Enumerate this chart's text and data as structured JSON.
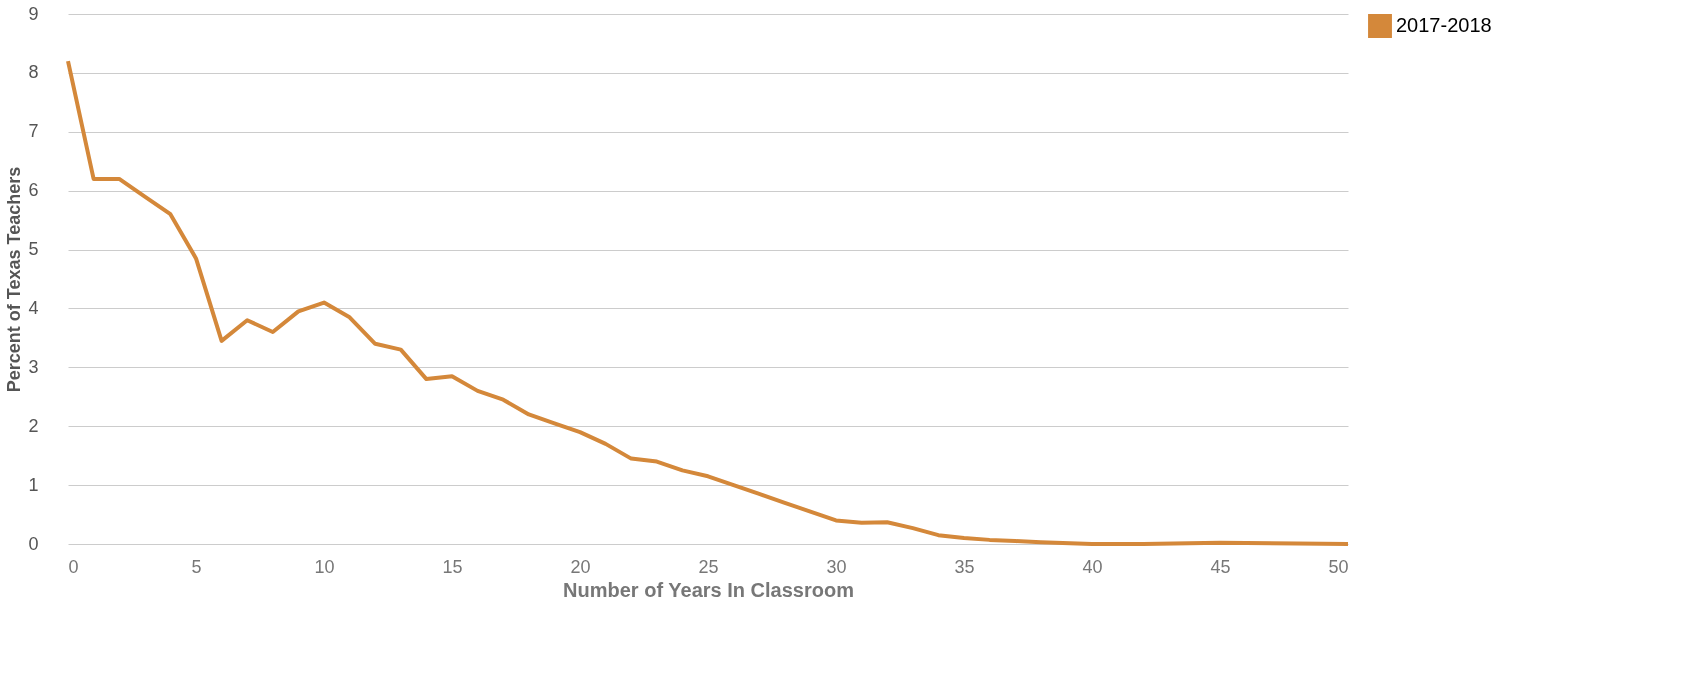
{
  "chart_data": {
    "type": "line",
    "xlabel": "Number of Years In Classroom",
    "ylabel": "Percent of Texas Teachers",
    "x": [
      0,
      1,
      2,
      3,
      4,
      5,
      6,
      7,
      8,
      9,
      10,
      11,
      12,
      13,
      14,
      15,
      16,
      17,
      18,
      19,
      20,
      21,
      22,
      23,
      24,
      25,
      26,
      27,
      28,
      29,
      30,
      31,
      32,
      33,
      34,
      35,
      36,
      37,
      38,
      40,
      42,
      45,
      48,
      50
    ],
    "series": [
      {
        "name": "2017-2018",
        "color": "#d4883a",
        "values": [
          8.2,
          6.2,
          6.2,
          5.9,
          5.6,
          4.85,
          3.45,
          3.8,
          3.6,
          3.95,
          4.1,
          3.85,
          3.4,
          3.3,
          2.8,
          2.85,
          2.6,
          2.45,
          2.2,
          2.05,
          1.9,
          1.7,
          1.45,
          1.4,
          1.25,
          1.15,
          1.0,
          0.85,
          0.7,
          0.55,
          0.4,
          0.36,
          0.37,
          0.27,
          0.15,
          0.1,
          0.07,
          0.05,
          0.03,
          0.0,
          0.0,
          0.02,
          0.01,
          0.0
        ]
      }
    ],
    "xlim": [
      0,
      50
    ],
    "xticks": [
      0,
      5,
      10,
      15,
      20,
      25,
      30,
      35,
      40,
      45,
      50
    ],
    "ylim": [
      0,
      9
    ],
    "yticks": [
      0,
      1,
      2,
      3,
      4,
      5,
      6,
      7,
      8,
      9
    ],
    "grid": "y",
    "legend": "right",
    "marker": "none",
    "line_style": "solid"
  }
}
